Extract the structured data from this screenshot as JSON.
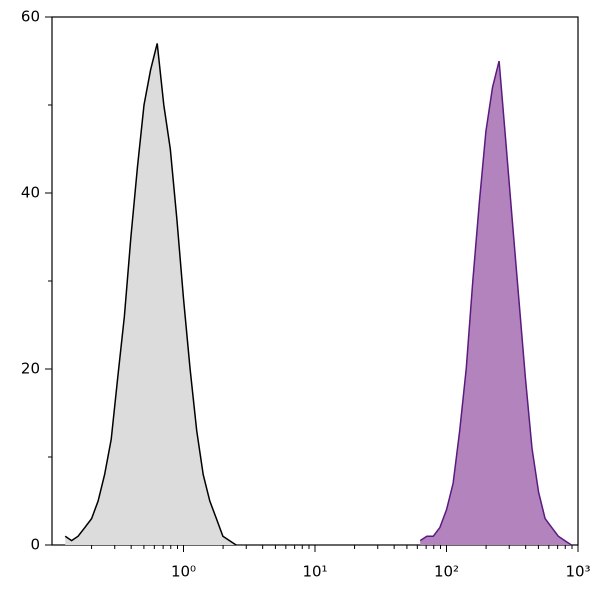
{
  "chart_data": {
    "type": "histogram",
    "xlim": [
      0.1,
      1000
    ],
    "xscale": "log",
    "xticks": [
      {
        "value": 1,
        "label": "10⁰"
      },
      {
        "value": 10,
        "label": "10¹"
      },
      {
        "value": 100,
        "label": "10²"
      },
      {
        "value": 1000,
        "label": "10³"
      }
    ],
    "ylim": [
      0,
      60
    ],
    "yticks": [
      0,
      20,
      40,
      60
    ],
    "yminorticks": [
      10,
      30,
      50
    ],
    "series": [
      {
        "color": "#000000",
        "fill": "#dcdcdc",
        "x": [
          0.126,
          0.141,
          0.158,
          0.178,
          0.2,
          0.224,
          0.251,
          0.282,
          0.316,
          0.355,
          0.398,
          0.447,
          0.501,
          0.562,
          0.631,
          0.708,
          0.794,
          0.891,
          1,
          1.122,
          1.259,
          1.413,
          1.585,
          1.778,
          1.995,
          2.239,
          2.512
        ],
        "values": [
          1,
          0.5,
          1,
          2,
          3,
          5,
          8,
          12,
          19,
          26,
          35,
          43,
          50,
          54,
          57,
          50,
          45,
          37,
          28,
          20,
          13,
          8,
          5,
          3,
          1,
          0.5,
          0
        ]
      },
      {
        "color": "#5a1a7f",
        "fill": "#b383bd",
        "x": [
          63.1,
          70.8,
          79.4,
          89.1,
          100,
          112.2,
          125.9,
          141.3,
          158.5,
          177.8,
          199.5,
          223.9,
          251.2,
          281.8,
          316.2,
          354.8,
          398.1,
          446.7,
          501.2,
          562.3,
          631,
          707.9,
          794.3,
          891.3
        ],
        "values": [
          0.5,
          1,
          1,
          2,
          4,
          7,
          13,
          20,
          30,
          39,
          47,
          52,
          55,
          46,
          37,
          28,
          19,
          11,
          6,
          3,
          2,
          1,
          0.5,
          0
        ]
      }
    ]
  }
}
